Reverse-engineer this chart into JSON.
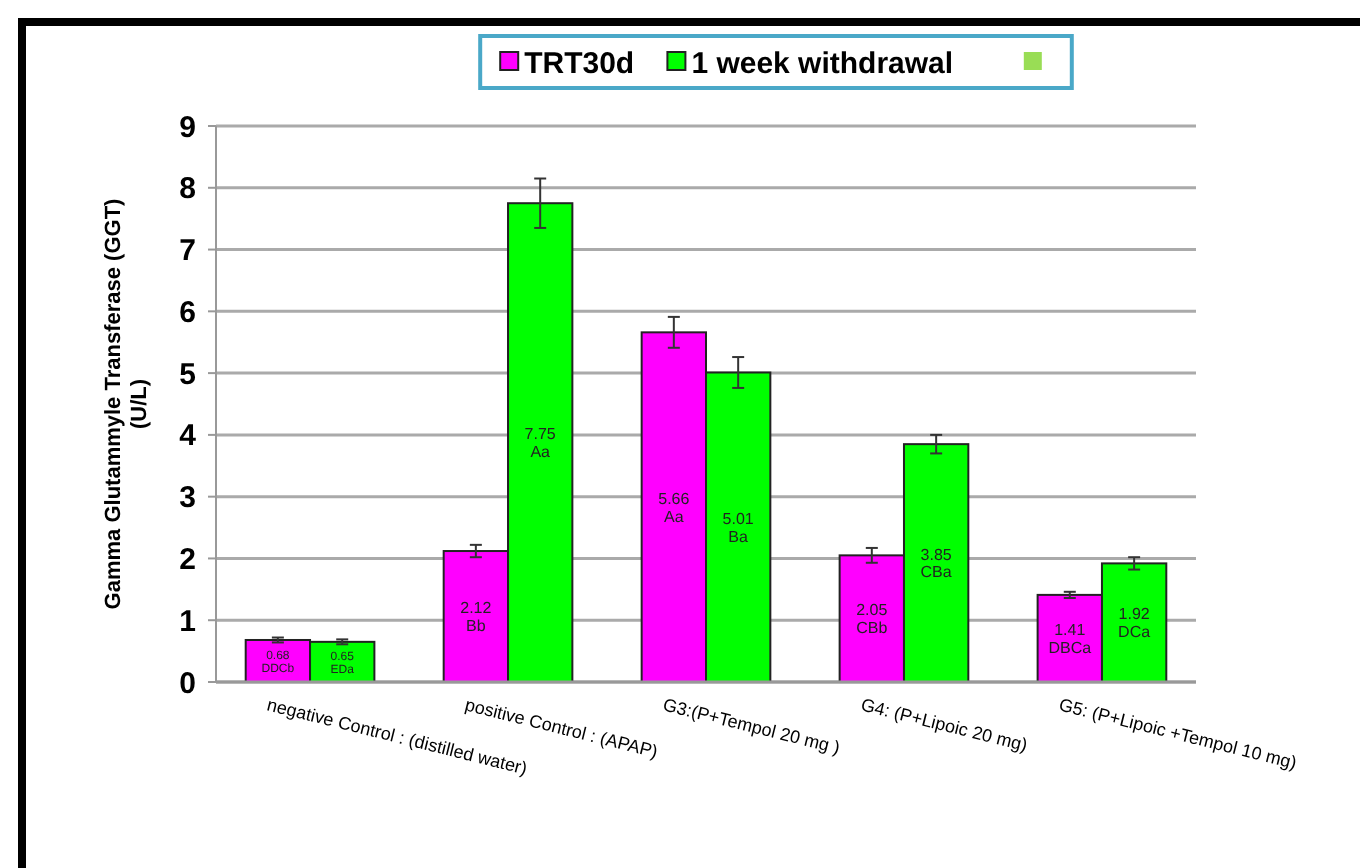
{
  "chart_data": {
    "type": "bar",
    "ylabel": "Gamma Glutammyle Transferase (GGT) (U/L)",
    "categories": [
      "negative Control : (distilled water)",
      "positive Control : (APAP)",
      "G3:(P+Tempol 20 mg )",
      "G4: (P+Lipoic 20 mg)",
      "G5: (P+Lipoic +Tempol 10 mg)"
    ],
    "series": [
      {
        "name": "TRT30d",
        "color": "#ff00ff",
        "values": [
          0.68,
          2.12,
          5.66,
          2.05,
          1.41
        ],
        "errors": [
          0.04,
          0.1,
          0.25,
          0.12,
          0.05
        ],
        "value_labels": [
          "0.68 DDCb",
          "2.12 Bb",
          "5.66 Aa",
          "2.05 CBb",
          "1.41 DBCa"
        ]
      },
      {
        "name": "1 week withdrawal",
        "color": "#00ff00",
        "values": [
          0.65,
          7.75,
          5.01,
          3.85,
          1.92
        ],
        "errors": [
          0.04,
          0.4,
          0.25,
          0.15,
          0.1
        ],
        "value_labels": [
          "0.65 EDa",
          "7.75 Aa",
          "5.01 Ba",
          "3.85 CBa",
          "1.92 DCa"
        ]
      }
    ],
    "ylim": [
      0,
      9
    ],
    "yticks": [
      0,
      1,
      2,
      3,
      4,
      5,
      6,
      7,
      8,
      9
    ],
    "grid": "y",
    "legend": "top"
  }
}
